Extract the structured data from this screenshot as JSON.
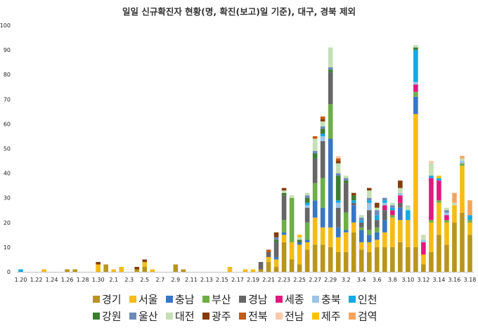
{
  "chart_data": {
    "type": "bar",
    "stacked": true,
    "title": "일일 신규확진자 현황(명, 확진(보고)일 기준), 대구, 경북 제외",
    "xlabel": "",
    "ylabel": "",
    "ylim": [
      0,
      100
    ],
    "yticks": [
      0,
      10,
      20,
      30,
      40,
      50,
      60,
      70,
      80,
      90,
      100
    ],
    "grid": false,
    "legend_position": "bottom",
    "x_tick_labels": [
      "1.20",
      "1.22",
      "1.24",
      "1.26",
      "1.28",
      "1.30",
      "2.1",
      "2.3",
      "2.5",
      "2.7",
      "2.9",
      "2.11",
      "2.13",
      "2.15",
      "2.17",
      "2.19",
      "2.21",
      "2.23",
      "2.25",
      "2.27",
      "2.29",
      "3.2",
      "3.4",
      "3.6",
      "3.8",
      "3.10",
      "3.12",
      "3.14",
      "3.16",
      "3.18"
    ],
    "categories": [
      "1.20",
      "1.21",
      "1.22",
      "1.23",
      "1.24",
      "1.25",
      "1.26",
      "1.27",
      "1.28",
      "1.29",
      "1.30",
      "1.31",
      "2.1",
      "2.2",
      "2.3",
      "2.4",
      "2.5",
      "2.6",
      "2.7",
      "2.8",
      "2.9",
      "2.10",
      "2.11",
      "2.12",
      "2.13",
      "2.14",
      "2.15",
      "2.16",
      "2.17",
      "2.18",
      "2.19",
      "2.20",
      "2.21",
      "2.22",
      "2.23",
      "2.24",
      "2.25",
      "2.26",
      "2.27",
      "2.28",
      "2.29",
      "3.1",
      "3.2",
      "3.3",
      "3.4",
      "3.5",
      "3.6",
      "3.7",
      "3.8",
      "3.9",
      "3.10",
      "3.11",
      "3.12",
      "3.13",
      "3.14",
      "3.15",
      "3.16",
      "3.17",
      "3.18"
    ],
    "series": [
      {
        "name": "경기",
        "color": "#B8961B",
        "values": [
          0,
          0,
          0,
          0,
          0,
          0,
          1,
          1,
          0,
          0,
          0,
          3,
          0,
          0,
          0,
          1,
          2,
          0,
          0,
          0,
          3,
          1,
          0,
          0,
          0,
          0,
          0,
          0,
          0,
          0,
          0,
          1,
          4,
          2,
          12,
          5,
          3,
          9,
          11,
          11,
          10,
          8,
          8,
          16,
          9,
          8,
          10,
          10,
          10,
          12,
          10,
          10,
          3,
          8,
          15,
          11,
          20,
          24,
          15
        ]
      },
      {
        "name": "서울",
        "color": "#F4BC16",
        "values": [
          0,
          0,
          0,
          1,
          0,
          0,
          0,
          0,
          0,
          0,
          3,
          0,
          1,
          2,
          0,
          0,
          2,
          1,
          0,
          0,
          0,
          0,
          0,
          0,
          0,
          0,
          0,
          2,
          0,
          1,
          1,
          0,
          2,
          3,
          3,
          7,
          8,
          3,
          11,
          7,
          8,
          6,
          8,
          4,
          3,
          4,
          3,
          6,
          12,
          9,
          11,
          54,
          4,
          12,
          13,
          9,
          7,
          19,
          5
        ]
      },
      {
        "name": "충남",
        "color": "#3876C4",
        "values": [
          0,
          0,
          0,
          0,
          0,
          0,
          0,
          0,
          0,
          0,
          0,
          0,
          0,
          0,
          0,
          0,
          0,
          0,
          0,
          0,
          0,
          0,
          0,
          0,
          0,
          0,
          0,
          0,
          0,
          0,
          0,
          0,
          0,
          1,
          1,
          0,
          1,
          1,
          7,
          8,
          36,
          4,
          1,
          7,
          5,
          3,
          3,
          5,
          0,
          5,
          0,
          7,
          0,
          0,
          0,
          0,
          0,
          0,
          0
        ]
      },
      {
        "name": "부산",
        "color": "#6DAE48",
        "values": [
          0,
          0,
          0,
          0,
          0,
          0,
          0,
          0,
          0,
          0,
          0,
          0,
          0,
          0,
          0,
          0,
          0,
          0,
          0,
          0,
          0,
          0,
          0,
          0,
          0,
          0,
          0,
          0,
          0,
          0,
          0,
          0,
          0,
          0,
          5,
          18,
          0,
          7,
          7,
          12,
          14,
          0,
          7,
          0,
          1,
          2,
          2,
          0,
          1,
          0,
          0,
          2,
          0,
          1,
          1,
          1,
          0,
          1,
          1
        ]
      },
      {
        "name": "경남",
        "color": "#666666",
        "values": [
          0,
          0,
          0,
          0,
          0,
          0,
          0,
          0,
          0,
          0,
          0,
          0,
          0,
          0,
          0,
          0,
          0,
          0,
          0,
          0,
          0,
          0,
          0,
          0,
          0,
          0,
          0,
          0,
          0,
          0,
          0,
          3,
          2,
          6,
          10,
          0,
          0,
          6,
          10,
          15,
          13,
          8,
          12,
          1,
          2,
          8,
          3,
          4,
          0,
          2,
          0,
          0,
          0,
          0,
          0,
          0,
          0,
          0,
          0
        ]
      },
      {
        "name": "세종",
        "color": "#E0197D",
        "values": [
          0,
          0,
          0,
          0,
          0,
          0,
          0,
          0,
          0,
          0,
          0,
          0,
          0,
          0,
          0,
          0,
          0,
          0,
          0,
          0,
          0,
          0,
          0,
          0,
          0,
          0,
          0,
          0,
          0,
          0,
          0,
          0,
          0,
          0,
          0,
          0,
          0,
          0,
          0,
          0,
          0,
          0,
          0,
          0,
          0,
          0,
          0,
          2,
          2,
          3,
          0,
          3,
          5,
          17,
          8,
          2,
          0,
          0,
          0
        ]
      },
      {
        "name": "충북",
        "color": "#9DC3E6",
        "values": [
          0,
          0,
          0,
          0,
          0,
          0,
          0,
          0,
          0,
          0,
          0,
          0,
          0,
          0,
          0,
          0,
          0,
          0,
          0,
          0,
          0,
          0,
          0,
          0,
          0,
          0,
          0,
          0,
          0,
          0,
          0,
          0,
          0,
          0,
          0,
          0,
          0,
          1,
          0,
          2,
          0,
          2,
          0,
          0,
          0,
          3,
          0,
          1,
          0,
          1,
          0,
          1,
          1,
          0,
          0,
          1,
          0,
          1,
          0
        ]
      },
      {
        "name": "인천",
        "color": "#13A9E3",
        "values": [
          1,
          0,
          0,
          0,
          0,
          0,
          0,
          0,
          0,
          0,
          0,
          0,
          0,
          0,
          0,
          0,
          0,
          0,
          0,
          0,
          0,
          0,
          0,
          0,
          0,
          0,
          0,
          0,
          0,
          0,
          0,
          0,
          0,
          0,
          0,
          0,
          0,
          1,
          0,
          1,
          0,
          1,
          0,
          1,
          1,
          1,
          2,
          1,
          1,
          0,
          4,
          13,
          0,
          1,
          1,
          0,
          0,
          0,
          2
        ]
      },
      {
        "name": "강원",
        "color": "#3C7D32",
        "values": [
          0,
          0,
          0,
          0,
          0,
          0,
          0,
          0,
          0,
          0,
          0,
          0,
          0,
          0,
          0,
          0,
          0,
          0,
          0,
          0,
          0,
          0,
          0,
          0,
          0,
          0,
          0,
          0,
          0,
          0,
          0,
          0,
          0,
          1,
          1,
          0,
          1,
          2,
          2,
          2,
          1,
          10,
          1,
          2,
          0,
          0,
          0,
          0,
          0,
          0,
          0,
          1,
          0,
          0,
          0,
          0,
          0,
          0,
          0
        ]
      },
      {
        "name": "울산",
        "color": "#6B8BB8",
        "values": [
          0,
          0,
          0,
          0,
          0,
          0,
          0,
          0,
          0,
          0,
          0,
          0,
          0,
          0,
          0,
          0,
          0,
          0,
          0,
          0,
          0,
          0,
          0,
          0,
          0,
          0,
          0,
          0,
          0,
          0,
          0,
          0,
          0,
          1,
          0,
          0,
          0,
          1,
          1,
          1,
          1,
          1,
          1,
          0,
          1,
          1,
          2,
          1,
          1,
          0,
          0,
          0,
          0,
          0,
          0,
          1,
          0,
          0,
          0
        ]
      },
      {
        "name": "대전",
        "color": "#C5E0B4",
        "values": [
          0,
          0,
          0,
          0,
          0,
          0,
          0,
          0,
          0,
          0,
          0,
          0,
          0,
          0,
          0,
          0,
          0,
          0,
          0,
          0,
          0,
          0,
          0,
          0,
          0,
          0,
          0,
          0,
          0,
          0,
          0,
          0,
          0,
          0,
          1,
          1,
          1,
          1,
          5,
          2,
          8,
          4,
          1,
          0,
          1,
          3,
          1,
          0,
          1,
          2,
          2,
          1,
          2,
          5,
          0,
          1,
          1,
          1,
          0
        ]
      },
      {
        "name": "광주",
        "color": "#843C0C",
        "values": [
          0,
          0,
          0,
          0,
          0,
          0,
          0,
          0,
          0,
          0,
          1,
          0,
          0,
          0,
          0,
          1,
          1,
          0,
          0,
          0,
          0,
          0,
          0,
          0,
          0,
          0,
          0,
          0,
          0,
          0,
          0,
          0,
          0,
          2,
          1,
          0,
          0,
          0,
          0,
          1,
          0,
          1,
          0,
          1,
          0,
          1,
          2,
          0,
          0,
          3,
          0,
          0,
          0,
          0,
          0,
          0,
          0,
          0,
          0
        ]
      },
      {
        "name": "전북",
        "color": "#C55A11",
        "values": [
          0,
          0,
          0,
          0,
          0,
          0,
          0,
          0,
          0,
          0,
          0,
          0,
          0,
          0,
          0,
          0,
          0,
          0,
          0,
          0,
          0,
          0,
          0,
          0,
          0,
          0,
          0,
          0,
          0,
          0,
          0,
          0,
          1,
          0,
          0,
          0,
          0,
          0,
          1,
          1,
          0,
          1,
          0,
          0,
          0,
          0,
          0,
          0,
          0,
          0,
          0,
          0,
          0,
          0,
          0,
          0,
          0,
          0,
          0
        ]
      },
      {
        "name": "전남",
        "color": "#F8CBAD",
        "values": [
          0,
          0,
          0,
          0,
          0,
          0,
          0,
          0,
          0,
          0,
          0,
          0,
          0,
          0,
          0,
          0,
          0,
          0,
          0,
          0,
          0,
          0,
          0,
          0,
          0,
          0,
          0,
          0,
          0,
          0,
          0,
          0,
          0,
          0,
          0,
          0,
          0,
          0,
          0,
          0,
          0,
          1,
          0,
          0,
          0,
          0,
          0,
          0,
          0,
          0,
          0,
          0,
          0,
          1,
          0,
          0,
          0,
          0,
          0
        ]
      },
      {
        "name": "제주",
        "color": "#FFC000",
        "values": [
          0,
          0,
          0,
          0,
          0,
          0,
          0,
          0,
          0,
          0,
          0,
          0,
          0,
          0,
          0,
          0,
          0,
          0,
          0,
          0,
          0,
          0,
          0,
          0,
          0,
          0,
          0,
          0,
          0,
          0,
          0,
          0,
          0,
          0,
          0,
          0,
          1,
          0,
          0,
          0,
          0,
          0,
          0,
          0,
          0,
          0,
          0,
          0,
          0,
          0,
          0,
          0,
          0,
          0,
          1,
          0,
          0,
          0,
          0
        ]
      },
      {
        "name": "검역",
        "color": "#F4A460",
        "values": [
          0,
          0,
          0,
          0,
          0,
          0,
          0,
          0,
          0,
          0,
          0,
          0,
          0,
          0,
          0,
          0,
          0,
          0,
          0,
          0,
          0,
          0,
          0,
          0,
          0,
          0,
          0,
          0,
          0,
          0,
          0,
          0,
          0,
          0,
          0,
          0,
          0,
          0,
          0,
          0,
          0,
          0,
          0,
          0,
          0,
          0,
          0,
          0,
          0,
          0,
          0,
          0,
          0,
          0,
          0,
          0,
          4,
          1,
          6
        ]
      }
    ]
  }
}
